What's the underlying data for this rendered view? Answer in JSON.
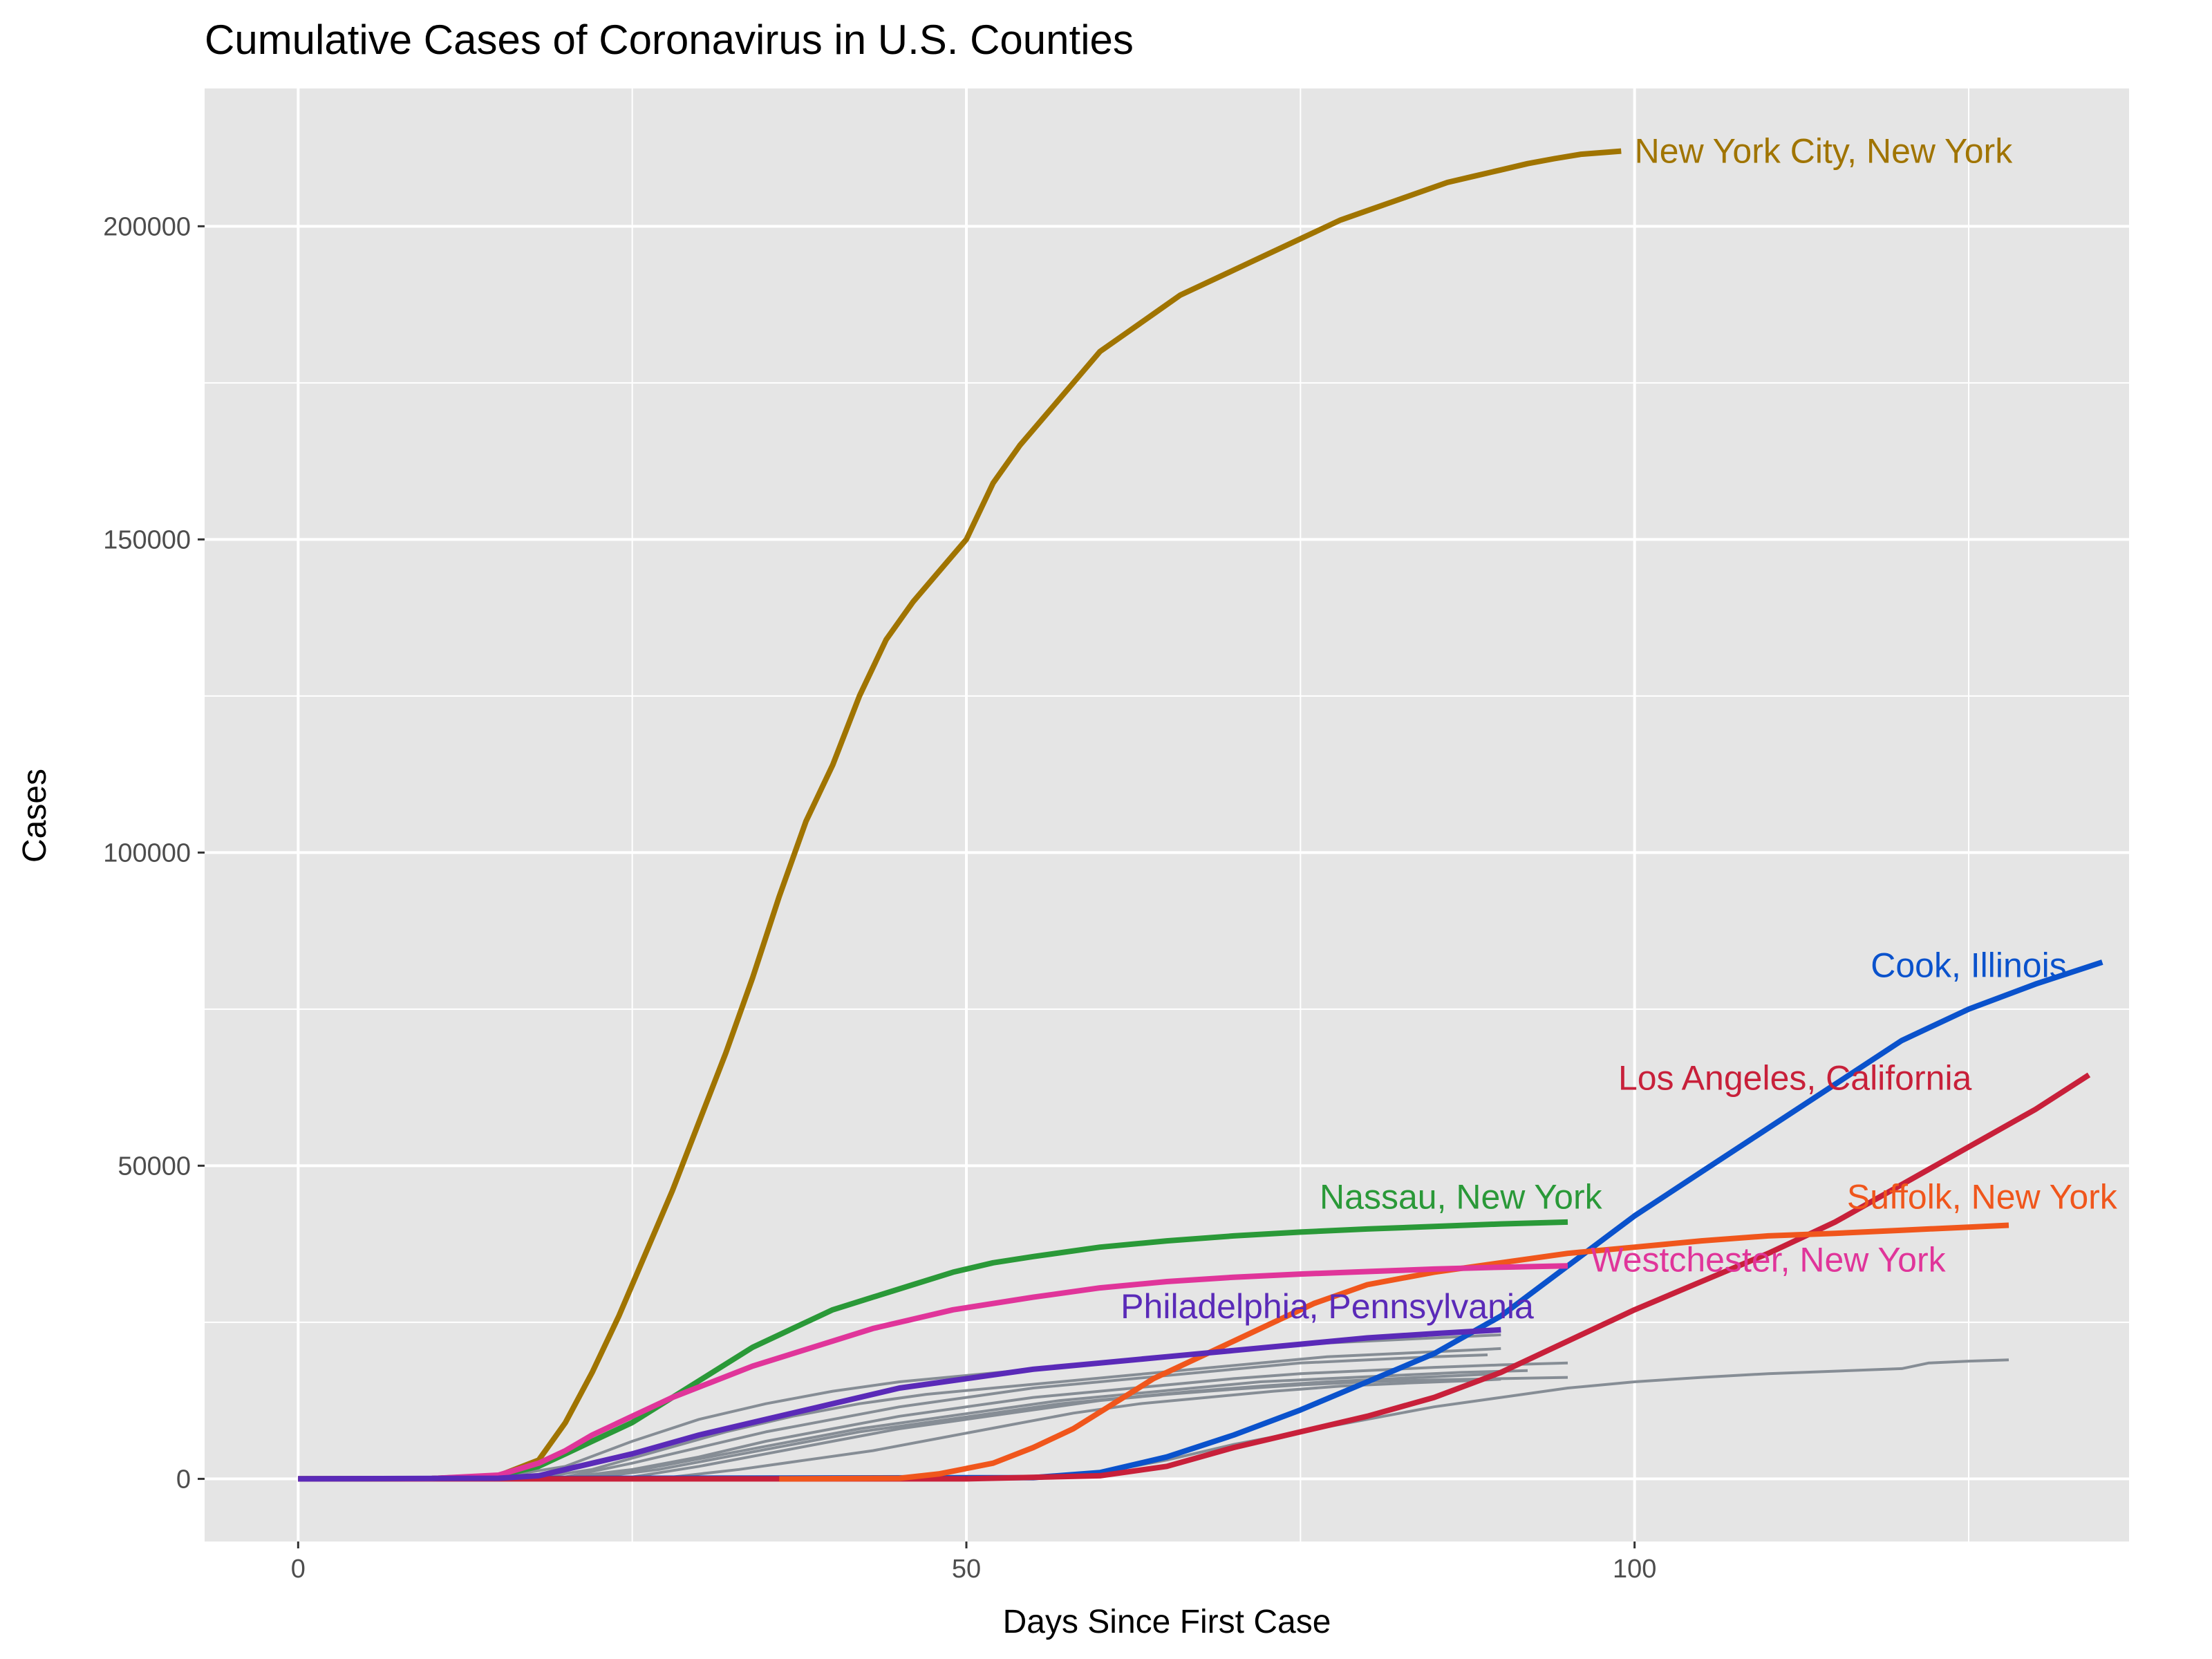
{
  "chart_data": {
    "type": "line",
    "title": "Cumulative Cases of Coronavirus in U.S. Counties",
    "xlabel": "Days Since First Case",
    "ylabel": "Cases",
    "xlim": [
      -7,
      137
    ],
    "ylim": [
      -10000,
      222000
    ],
    "x_ticks": [
      0,
      50,
      100
    ],
    "y_ticks": [
      0,
      50000,
      100000,
      150000,
      200000
    ],
    "x_tick_labels": [
      "0",
      "50",
      "100"
    ],
    "y_tick_labels": [
      "0",
      "50000",
      "100000",
      "150000",
      "200000"
    ],
    "grid": true,
    "legend": "none",
    "panel_background": "#e5e5e5",
    "highlighted_series": [
      {
        "name": "New York City, New York",
        "color": "#a07400",
        "x": [
          0,
          10,
          15,
          18,
          20,
          22,
          24,
          26,
          28,
          30,
          32,
          34,
          36,
          38,
          40,
          42,
          44,
          46,
          48,
          50,
          52,
          54,
          56,
          58,
          60,
          62,
          64,
          66,
          68,
          70,
          72,
          74,
          76,
          78,
          80,
          82,
          84,
          86,
          88,
          90,
          92,
          94,
          96,
          99
        ],
        "values": [
          0,
          50,
          500,
          3000,
          9000,
          17000,
          26000,
          36000,
          46000,
          57000,
          68000,
          80000,
          93000,
          105000,
          114000,
          125000,
          134000,
          140000,
          145000,
          150000,
          159000,
          165000,
          170000,
          175000,
          180000,
          183000,
          186000,
          189000,
          191000,
          193000,
          195000,
          197000,
          199000,
          201000,
          202500,
          204000,
          205500,
          207000,
          208000,
          209000,
          210000,
          210800,
          211500,
          212000
        ]
      },
      {
        "name": "Cook, Illinois",
        "color": "#0a52cc",
        "x": [
          0,
          55,
          60,
          65,
          70,
          75,
          80,
          85,
          90,
          95,
          100,
          105,
          110,
          115,
          120,
          125,
          130,
          135
        ],
        "values": [
          0,
          200,
          1000,
          3500,
          7000,
          11000,
          15500,
          20000,
          26000,
          34000,
          42000,
          49000,
          56000,
          63000,
          70000,
          75000,
          79000,
          82500
        ]
      },
      {
        "name": "Los Angeles, California",
        "color": "#c8203a",
        "x": [
          0,
          50,
          60,
          65,
          70,
          75,
          80,
          85,
          90,
          95,
          100,
          105,
          110,
          115,
          120,
          125,
          130,
          134
        ],
        "values": [
          0,
          0,
          500,
          2000,
          5000,
          7500,
          10000,
          13000,
          17000,
          22000,
          27000,
          31500,
          36000,
          41000,
          47000,
          53000,
          59000,
          64500
        ]
      },
      {
        "name": "Nassau, New York",
        "color": "#2a9938",
        "x": [
          0,
          10,
          15,
          18,
          20,
          22,
          25,
          28,
          31,
          34,
          37,
          40,
          43,
          46,
          49,
          52,
          55,
          60,
          65,
          70,
          75,
          80,
          85,
          90,
          95
        ],
        "values": [
          0,
          50,
          500,
          2000,
          4000,
          6000,
          9000,
          13000,
          17000,
          21000,
          24000,
          27000,
          29000,
          31000,
          33000,
          34500,
          35500,
          37000,
          38000,
          38800,
          39400,
          39900,
          40300,
          40700,
          41000
        ]
      },
      {
        "name": "Suffolk, New York",
        "color": "#f0561c",
        "x": [
          36,
          45,
          48,
          52,
          55,
          58,
          61,
          64,
          67,
          70,
          73,
          76,
          80,
          85,
          90,
          95,
          100,
          105,
          110,
          115,
          120,
          125,
          128
        ],
        "values": [
          0,
          100,
          800,
          2500,
          5000,
          8000,
          12000,
          16000,
          19000,
          22000,
          25000,
          28000,
          31000,
          33000,
          34500,
          36000,
          37000,
          38000,
          38800,
          39200,
          39700,
          40200,
          40500
        ]
      },
      {
        "name": "Westchester, New York",
        "color": "#e0359a",
        "x": [
          0,
          10,
          15,
          18,
          20,
          22,
          25,
          28,
          31,
          34,
          37,
          40,
          43,
          46,
          49,
          52,
          55,
          60,
          65,
          70,
          75,
          80,
          85,
          90,
          95
        ],
        "values": [
          0,
          50,
          600,
          2500,
          4500,
          7000,
          10000,
          13000,
          15500,
          18000,
          20000,
          22000,
          24000,
          25500,
          27000,
          28000,
          29000,
          30500,
          31500,
          32200,
          32700,
          33100,
          33500,
          33800,
          34000
        ]
      },
      {
        "name": "Philadelphia, Pennsylvania",
        "color": "#5a2ab8",
        "x": [
          0,
          15,
          18,
          20,
          25,
          30,
          35,
          40,
          45,
          50,
          55,
          60,
          65,
          70,
          75,
          80,
          85,
          90
        ],
        "values": [
          0,
          100,
          500,
          1500,
          4000,
          7000,
          9500,
          12000,
          14500,
          16000,
          17500,
          18500,
          19500,
          20500,
          21500,
          22500,
          23200,
          23800
        ]
      }
    ],
    "background_series": [
      {
        "color": "#868d95",
        "x": [
          0,
          15,
          20,
          25,
          30,
          35,
          40,
          45,
          50,
          55,
          60,
          65,
          70,
          75,
          80,
          85,
          90
        ],
        "values": [
          0,
          300,
          2000,
          6000,
          9500,
          12000,
          14000,
          15500,
          16500,
          17500,
          18500,
          19500,
          20500,
          21500,
          22000,
          22500,
          23000
        ]
      },
      {
        "color": "#868d95",
        "x": [
          0,
          18,
          22,
          27,
          32,
          37,
          42,
          47,
          52,
          57,
          62,
          67,
          72,
          77,
          82,
          87,
          90
        ],
        "values": [
          0,
          200,
          1500,
          4500,
          7500,
          10000,
          12000,
          13500,
          14500,
          15500,
          16500,
          17500,
          18500,
          19500,
          20000,
          20500,
          20800
        ]
      },
      {
        "color": "#868d95",
        "x": [
          0,
          20,
          25,
          30,
          35,
          40,
          45,
          50,
          55,
          60,
          65,
          70,
          75,
          80,
          85,
          89
        ],
        "values": [
          0,
          300,
          2500,
          5000,
          7500,
          9500,
          11500,
          13000,
          14500,
          15500,
          16500,
          17500,
          18500,
          19000,
          19500,
          19800
        ]
      },
      {
        "color": "#868d95",
        "x": [
          0,
          20,
          25,
          30,
          35,
          40,
          45,
          50,
          55,
          60,
          65,
          70,
          75,
          80,
          85,
          90,
          95
        ],
        "values": [
          0,
          200,
          1500,
          3500,
          6000,
          8000,
          10000,
          11500,
          13000,
          14000,
          15000,
          16000,
          16800,
          17300,
          17800,
          18200,
          18500
        ]
      },
      {
        "color": "#868d95",
        "x": [
          0,
          22,
          27,
          32,
          37,
          42,
          47,
          52,
          57,
          62,
          67,
          72,
          77,
          82,
          87,
          92
        ],
        "values": [
          0,
          300,
          2000,
          4000,
          6000,
          8000,
          9500,
          11000,
          12500,
          13500,
          14500,
          15500,
          16000,
          16500,
          17000,
          17300
        ]
      },
      {
        "color": "#868d95",
        "x": [
          0,
          22,
          27,
          32,
          37,
          42,
          47,
          52,
          57,
          62,
          67,
          72,
          77,
          82,
          87,
          90
        ],
        "values": [
          0,
          200,
          1500,
          3500,
          5500,
          7500,
          9000,
          10500,
          12000,
          13000,
          14000,
          14800,
          15500,
          16000,
          16500,
          16800
        ]
      },
      {
        "color": "#868d95",
        "x": [
          0,
          25,
          30,
          35,
          40,
          45,
          50,
          55,
          60,
          65,
          70,
          75,
          80,
          85,
          90,
          95
        ],
        "values": [
          0,
          300,
          2000,
          4000,
          6000,
          8000,
          9500,
          11000,
          12500,
          13500,
          14300,
          15000,
          15500,
          15800,
          16000,
          16200
        ]
      },
      {
        "color": "#868d95",
        "x": [
          0,
          28,
          33,
          38,
          43,
          48,
          53,
          58,
          63,
          68,
          73,
          78,
          83,
          88,
          90
        ],
        "values": [
          0,
          300,
          1500,
          3000,
          4500,
          6500,
          8500,
          10500,
          12000,
          13000,
          14000,
          14800,
          15300,
          15700,
          15900
        ]
      },
      {
        "color": "#868d95",
        "x": [
          0,
          50,
          55,
          60,
          65,
          70,
          75,
          80,
          85,
          90,
          95,
          100,
          105,
          110,
          115,
          120,
          122,
          125,
          128
        ],
        "values": [
          0,
          0,
          300,
          1000,
          3000,
          5500,
          7500,
          9500,
          11500,
          13000,
          14500,
          15500,
          16200,
          16800,
          17200,
          17600,
          18500,
          18800,
          19000
        ]
      }
    ],
    "series_labels": [
      {
        "text": "New York City, New York",
        "series": 0,
        "x": 100,
        "y": 212000,
        "anchor": "start"
      },
      {
        "text": "Cook, Illinois",
        "series": 1,
        "x": 125,
        "y": 82000,
        "anchor": "middle"
      },
      {
        "text": "Los Angeles, California",
        "series": 2,
        "x": 112,
        "y": 64000,
        "anchor": "middle"
      },
      {
        "text": "Nassau, New York",
        "series": 3,
        "x": 87,
        "y": 45000,
        "anchor": "middle"
      },
      {
        "text": "Suffolk, New York",
        "series": 4,
        "x": 126,
        "y": 45000,
        "anchor": "middle"
      },
      {
        "text": "Westchester, New York",
        "series": 5,
        "x": 110,
        "y": 35000,
        "anchor": "middle"
      },
      {
        "text": "Philadelphia, Pennsylvania",
        "series": 6,
        "x": 77,
        "y": 27500,
        "anchor": "middle"
      }
    ]
  }
}
